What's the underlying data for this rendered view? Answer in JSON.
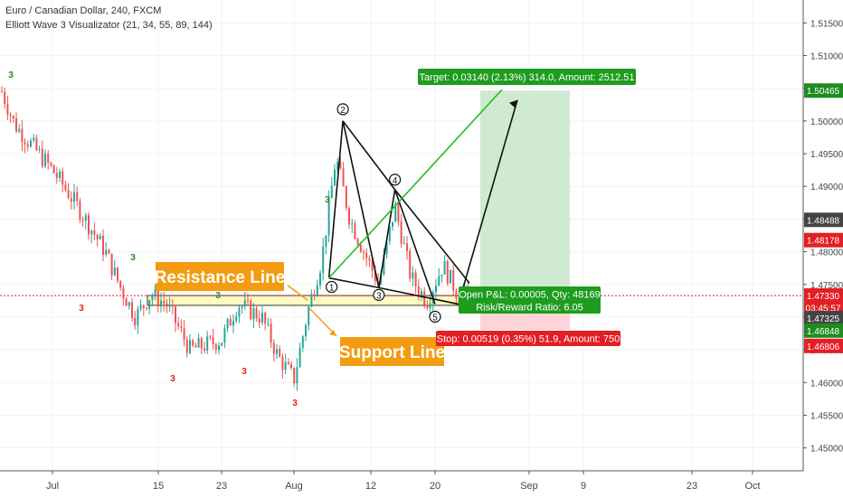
{
  "header": {
    "symbol_line": "Euro / Canadian Dollar, 240, FXCM",
    "indicator_line": "Elliott Wave 3 Visualizator (21, 34, 55, 89, 144)"
  },
  "price_axis": {
    "ticks": [
      "1.51500",
      "1.51000",
      "1.50500",
      "1.50000",
      "1.49500",
      "1.49000",
      "1.48500",
      "1.48000",
      "1.47500",
      "1.47000",
      "1.46500",
      "1.46000",
      "1.45500",
      "1.45000"
    ],
    "badges": [
      {
        "text": "1.50465",
        "price": 1.50465,
        "color": "#1e8c1e"
      },
      {
        "text": "1.48488",
        "price": 1.48488,
        "color": "#444444"
      },
      {
        "text": "1.48178",
        "price": 1.48178,
        "color": "#e31e24"
      },
      {
        "text": "1.47330",
        "price": 1.4733,
        "color": "#e31e24"
      },
      {
        "text": "03:45:57",
        "price": 1.47145,
        "color": "#e31e24"
      },
      {
        "text": "1.47325",
        "price": 1.46985,
        "color": "#444444"
      },
      {
        "text": "1.46848",
        "price": 1.46795,
        "color": "#1e8c1e"
      },
      {
        "text": "1.46806",
        "price": 1.4656,
        "color": "#e31e24"
      }
    ]
  },
  "time_axis": {
    "ticks": [
      "Jul",
      "15",
      "23",
      "Aug",
      "12",
      "20",
      "Sep",
      "9",
      "23",
      "Oct"
    ]
  },
  "annotations": {
    "resistance_label": "Resistance Line",
    "support_label": "Support Line",
    "target_box": "Target: 0.03140 (2.13%) 314.0, Amount: 2512.51",
    "open_pnl_box": "Open P&L: 0.00005, Qty: 48169",
    "risk_reward_box": "Risk/Reward Ratio: 6.05",
    "stop_box": "Stop: 0.00519 (0.35%) 51.9, Amount: 750",
    "wave_labels": [
      "1",
      "2",
      "3",
      "4",
      "5"
    ],
    "wave3_markers": [
      "3",
      "3",
      "3",
      "3",
      "3",
      "3",
      "3",
      "3"
    ]
  },
  "colors": {
    "up_candle": "#26a69a",
    "down_candle": "#ef5350",
    "accent_orange": "#f39c12",
    "green_label": "#1e8c1e",
    "red_label": "#e31e24"
  },
  "chart_data": {
    "type": "candlestick",
    "symbol": "Euro / Canadian Dollar",
    "interval": "240",
    "source": "FXCM",
    "ylim": [
      1.4465,
      1.5185
    ],
    "price_path": [
      {
        "x": "Jun 27",
        "y": 1.5045
      },
      {
        "x": "Jun 28",
        "y": 1.4995
      },
      {
        "x": "Jul 1",
        "y": 1.4925
      },
      {
        "x": "Jul 4",
        "y": 1.4875
      },
      {
        "x": "Jul 8",
        "y": 1.48
      },
      {
        "x": "Jul 10",
        "y": 1.4745
      },
      {
        "x": "Jul 12",
        "y": 1.47
      },
      {
        "x": "Jul 14",
        "y": 1.4735
      },
      {
        "x": "Jul 16",
        "y": 1.472
      },
      {
        "x": "Jul 19",
        "y": 1.465
      },
      {
        "x": "Jul 23",
        "y": 1.4665
      },
      {
        "x": "Jul 25",
        "y": 1.472
      },
      {
        "x": "Jul 28",
        "y": 1.47
      },
      {
        "x": "Jul 30",
        "y": 1.464
      },
      {
        "x": "Aug 1",
        "y": 1.4605
      },
      {
        "x": "Aug 3",
        "y": 1.471
      },
      {
        "x": "Aug 5",
        "y": 1.479
      },
      {
        "x": "Aug 7",
        "y": 1.4945
      },
      {
        "x": "Aug 9",
        "y": 1.485
      },
      {
        "x": "Aug 11",
        "y": 1.48
      },
      {
        "x": "Aug 13",
        "y": 1.475
      },
      {
        "x": "Aug 15",
        "y": 1.487
      },
      {
        "x": "Aug 17",
        "y": 1.476
      },
      {
        "x": "Aug 19",
        "y": 1.4725
      },
      {
        "x": "Aug 21",
        "y": 1.478
      },
      {
        "x": "Aug 23",
        "y": 1.4733
      }
    ],
    "elliott_points": [
      {
        "label": "1",
        "x": "Aug 6",
        "y": 1.476
      },
      {
        "label": "2",
        "x": "Aug 8",
        "y": 1.5
      },
      {
        "label": "3",
        "x": "Aug 13",
        "y": 1.4745
      },
      {
        "label": "4",
        "x": "Aug 15",
        "y": 1.4895
      },
      {
        "label": "5",
        "x": "Aug 20",
        "y": 1.472
      }
    ],
    "target_price": 1.50465,
    "entry_price": 1.4733,
    "stop_price": 1.46806
  }
}
